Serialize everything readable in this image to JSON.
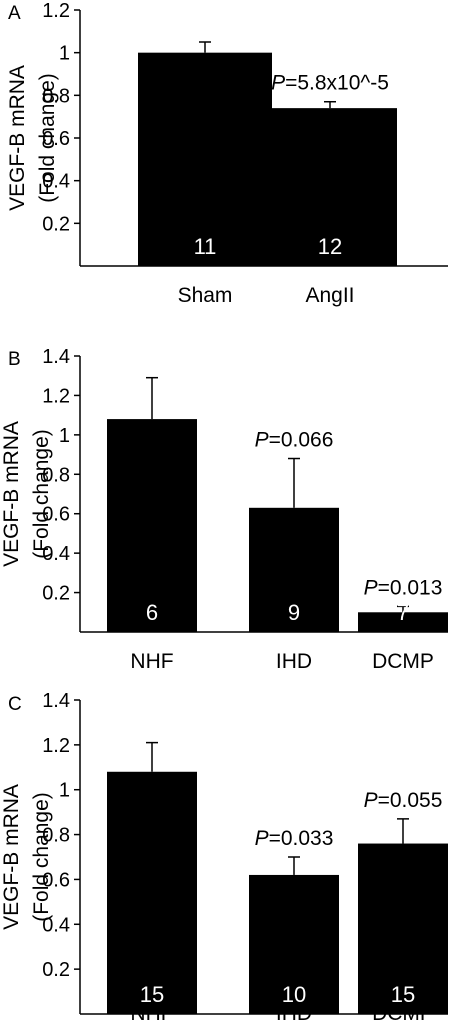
{
  "chart_data": [
    {
      "type": "bar",
      "panel_label": "A",
      "ylabel_line1": "VEGF-B mRNA",
      "ylabel_line2": "(Fold change)",
      "ylim": [
        0,
        1.2
      ],
      "yticks": [
        "0.2",
        "0.4",
        "0.6",
        "0.8",
        "1",
        "1.2"
      ],
      "categories": [
        "Sham",
        "AngII"
      ],
      "values": [
        1.0,
        0.74
      ],
      "errors": [
        0.05,
        0.03
      ],
      "n_labels": [
        "11",
        "12"
      ],
      "p_values": [
        null,
        {
          "label": "P",
          "text": "=5.8x10^-5"
        }
      ]
    },
    {
      "type": "bar",
      "panel_label": "B",
      "ylabel_line1": "VEGF-B mRNA",
      "ylabel_line2": "(Fold change)",
      "ylim": [
        0,
        1.4
      ],
      "yticks": [
        "0.2",
        "0.4",
        "0.6",
        "0.8",
        "1",
        "1.2",
        "1.4"
      ],
      "categories": [
        "NHF",
        "IHD",
        "DCMP"
      ],
      "values": [
        1.08,
        0.63,
        0.1
      ],
      "errors": [
        0.21,
        0.25,
        0.03
      ],
      "n_labels": [
        "6",
        "9",
        "7"
      ],
      "p_values": [
        null,
        {
          "label": "P",
          "text": "=0.066"
        },
        {
          "label": "P",
          "text": "=0.013"
        }
      ]
    },
    {
      "type": "bar",
      "panel_label": "C",
      "ylabel_line1": "VEGF-B mRNA",
      "ylabel_line2": "(Fold change)",
      "ylim": [
        0,
        1.4
      ],
      "yticks": [
        "0.2",
        "0.4",
        "0.6",
        "0.8",
        "1",
        "1.2",
        "1.4"
      ],
      "categories": [
        "NHF",
        "IHD",
        "DCMP"
      ],
      "values": [
        1.08,
        0.62,
        0.76
      ],
      "errors": [
        0.13,
        0.08,
        0.11
      ],
      "n_labels": [
        "15",
        "10",
        "15"
      ],
      "p_values": [
        null,
        {
          "label": "P",
          "text": "=0.033"
        },
        {
          "label": "P",
          "text": "=0.055"
        }
      ]
    }
  ]
}
